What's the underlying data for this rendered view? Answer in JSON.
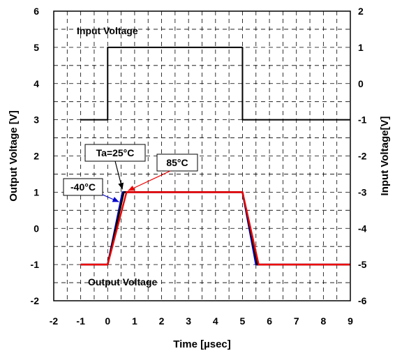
{
  "chart_data": {
    "type": "line",
    "xlabel": "Time [µsec]",
    "ylabel_left": "Output Voltage [V]",
    "ylabel_right": "Input Voltage[V]",
    "xlim": [
      -2,
      9
    ],
    "ylim_left": [
      -2,
      6
    ],
    "ylim_right": [
      -6,
      2
    ],
    "x_ticks": [
      -2,
      -1,
      0,
      1,
      2,
      3,
      4,
      5,
      6,
      7,
      8,
      9
    ],
    "y_left_ticks": [
      -2,
      -1,
      0,
      1,
      2,
      3,
      4,
      5,
      6
    ],
    "y_right_ticks": [
      -6,
      -5,
      -4,
      -3,
      -2,
      -1,
      0,
      1,
      2
    ],
    "grid": "dashed, x every 0.5, y every 0.5",
    "series": [
      {
        "name": "Input Voltage",
        "axis": "right",
        "color": "#000000",
        "x": [
          -1,
          0,
          0,
          5,
          5,
          9
        ],
        "y": [
          -1,
          -1,
          1,
          1,
          -1,
          -1
        ]
      },
      {
        "name": "-40°C",
        "axis": "left",
        "color": "#0000cc",
        "x": [
          -1,
          0,
          0.55,
          5,
          5.5,
          9
        ],
        "y": [
          -1,
          -1,
          1,
          1,
          -1,
          -1
        ]
      },
      {
        "name": "Ta=25°C",
        "axis": "left",
        "color": "#000000",
        "x": [
          -1,
          0,
          0.6,
          5,
          5.55,
          9
        ],
        "y": [
          -1,
          -1,
          1,
          1,
          -1,
          -1
        ]
      },
      {
        "name": "85°C",
        "axis": "left",
        "color": "#ee0000",
        "x": [
          -1,
          0,
          0.7,
          5,
          5.6,
          9
        ],
        "y": [
          -1,
          -1,
          1,
          1,
          -1,
          -1
        ]
      }
    ],
    "annotations": [
      {
        "text": "Input Voltage"
      },
      {
        "text": "Output Voltage"
      },
      {
        "text": "Ta=25°C",
        "boxed": true,
        "points_to": {
          "x": 0.6,
          "y": 1
        }
      },
      {
        "text": "85°C",
        "boxed": true,
        "points_to": {
          "x": 0.7,
          "y": 1
        }
      },
      {
        "text": "-40°C",
        "boxed": true,
        "points_to": {
          "x": 0.55,
          "y": 1
        }
      }
    ]
  }
}
